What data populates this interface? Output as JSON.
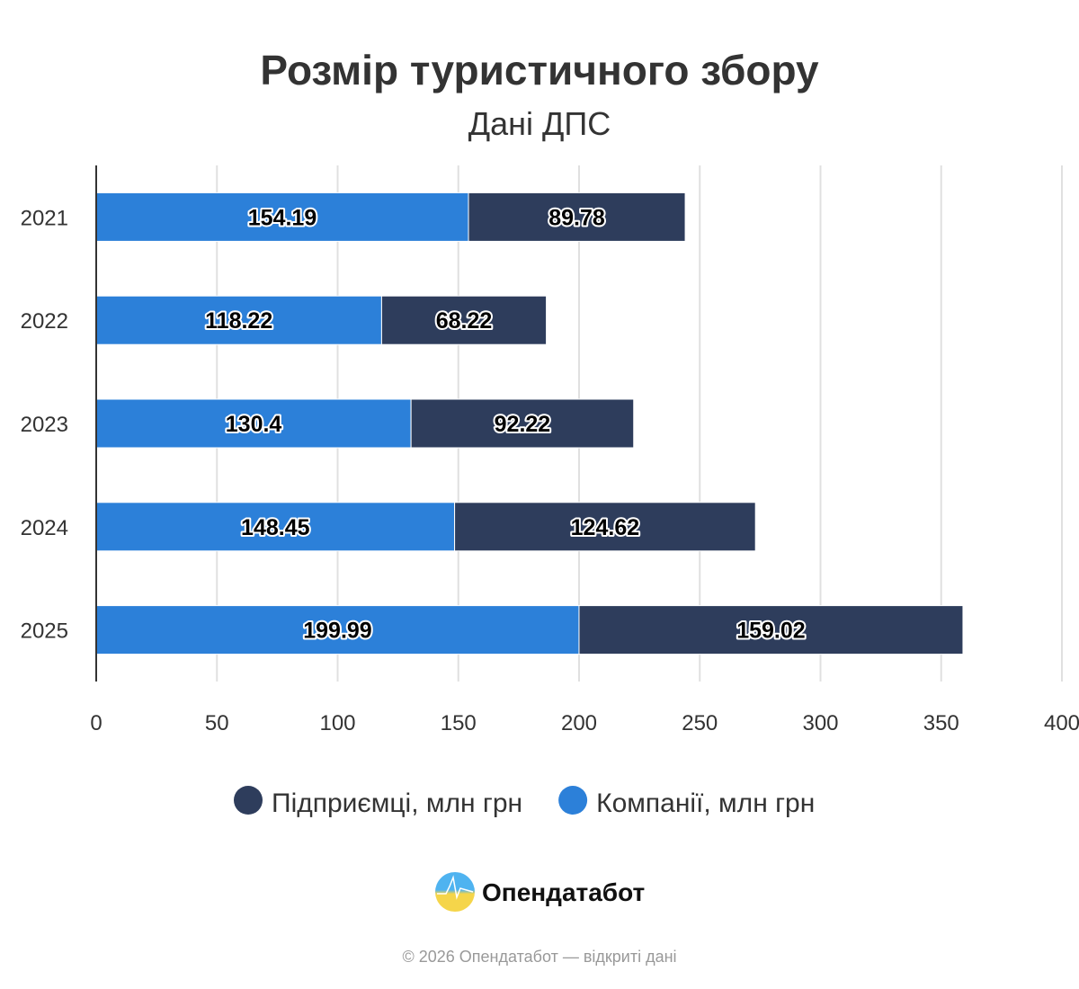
{
  "chart_data": {
    "type": "bar",
    "orientation": "horizontal",
    "stacked": true,
    "title": "Розмір туристичного збору",
    "subtitle": "Дані ДПС",
    "categories": [
      "2021",
      "2022",
      "2023",
      "2024",
      "2025"
    ],
    "series": [
      {
        "name": "Компанії, млн грн",
        "color": "#2c80d9",
        "values": [
          154.19,
          118.22,
          130.4,
          148.45,
          199.99
        ]
      },
      {
        "name": "Підприємці, млн грн",
        "color": "#2e3d5c",
        "values": [
          89.78,
          68.22,
          92.22,
          124.62,
          159.02
        ]
      }
    ],
    "xlim": [
      0,
      400
    ],
    "xticks": [
      "0",
      "50",
      "100",
      "150",
      "200",
      "250",
      "300",
      "350",
      "400"
    ],
    "grid": true,
    "legend_placement": "bottom",
    "legend_order": [
      "Підприємці, млн грн",
      "Компанії, млн грн"
    ]
  },
  "branding": {
    "logo_text": "Опендатабот",
    "footer": "© 2026 Опендатабот — відкриті дані"
  }
}
